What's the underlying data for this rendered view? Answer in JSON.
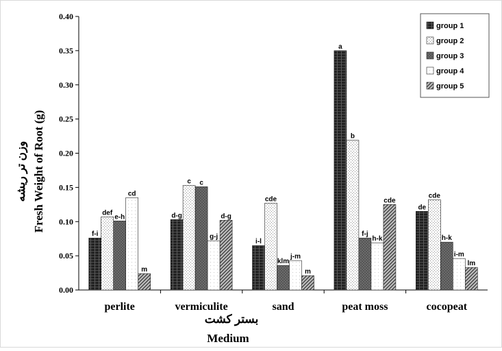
{
  "chart_data": {
    "type": "bar",
    "xlabel": "Medium",
    "xlabel_alt": "بستر کشت",
    "ylabel": "Fresh Weight of Root (g)",
    "ylabel_alt": "وزن تر ریشه",
    "ylim": [
      0,
      0.4
    ],
    "yticks": [
      "0.00",
      "0.05",
      "0.10",
      "0.15",
      "0.20",
      "0.25",
      "0.30",
      "0.35",
      "0.40"
    ],
    "grid": false,
    "legend_position": "top-right",
    "categories": [
      "perlite",
      "vermiculite",
      "sand",
      "peat moss",
      "cocopeat"
    ],
    "series": [
      {
        "name": "group 1",
        "values": [
          0.076,
          0.103,
          0.065,
          0.35,
          0.115
        ],
        "labels": [
          "f-i",
          "d-g",
          "i-l",
          "a",
          "de"
        ]
      },
      {
        "name": "group 2",
        "values": [
          0.107,
          0.153,
          0.127,
          0.219,
          0.132
        ],
        "labels": [
          "def",
          "c",
          "cde",
          "b",
          "cde"
        ]
      },
      {
        "name": "group 3",
        "values": [
          0.101,
          0.151,
          0.036,
          0.076,
          0.07
        ],
        "labels": [
          "e-h",
          "c",
          "klm",
          "f-j",
          "h-k"
        ]
      },
      {
        "name": "group 4",
        "values": [
          0.135,
          0.072,
          0.043,
          0.069,
          0.046
        ],
        "labels": [
          "cd",
          "g-j",
          "j-m",
          "h-k",
          "i-m"
        ]
      },
      {
        "name": "group 5",
        "values": [
          0.024,
          0.102,
          0.021,
          0.125,
          0.033
        ],
        "labels": [
          "m",
          "d-g",
          "m",
          "cde",
          "lm"
        ]
      }
    ]
  }
}
